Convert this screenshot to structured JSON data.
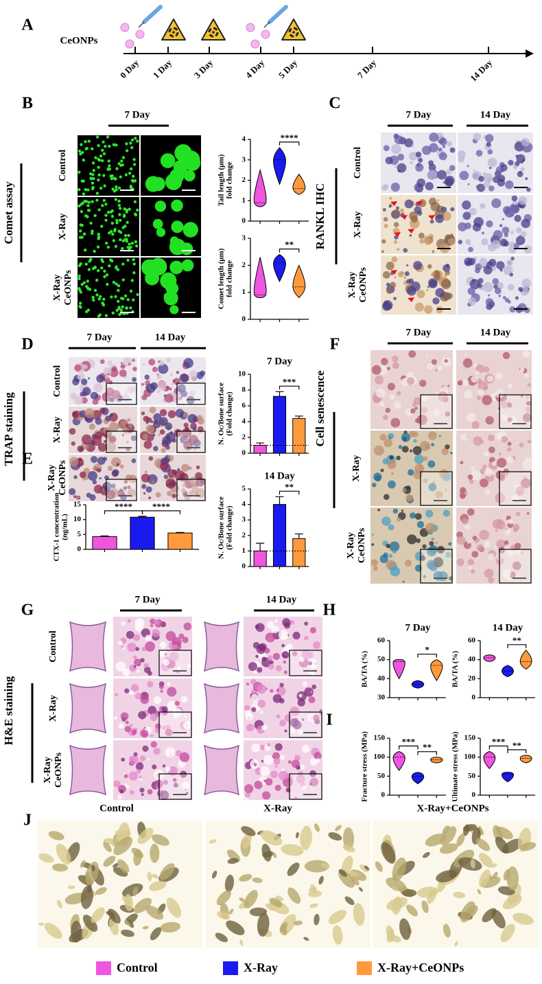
{
  "panel_labels": [
    "A",
    "B",
    "C",
    "D",
    "E",
    "F",
    "G",
    "H",
    "I",
    "J"
  ],
  "timeline": {
    "label": "CeONPs",
    "days": [
      "0 Day",
      "1 Day",
      "3 Day",
      "4 Day",
      "5 Day",
      "7 Day",
      "14 Day"
    ]
  },
  "sections": {
    "comet": "Comet assay",
    "rankl": "RANKL IHC",
    "trap": "TRAP staining",
    "senescence": "Cell senescence",
    "he": "H&E staining"
  },
  "day_headers": {
    "d7": "7 Day",
    "d14": "14 Day"
  },
  "row_labels": [
    [
      "Control"
    ],
    [
      "X-Ray"
    ],
    [
      "X-Ray",
      "CeONPs"
    ]
  ],
  "microct_labels": [
    "Control",
    "X-Ray",
    "X-Ray+CeONPs"
  ],
  "legend": [
    {
      "name": "Control",
      "color": "#f055e0"
    },
    {
      "name": "X-Ray",
      "color": "#1a1aee"
    },
    {
      "name": "X-Ray+CeONPs",
      "color": "#ff9a3c"
    }
  ],
  "chart_data": [
    {
      "type": "violin",
      "ylabel": [
        "Tail length (μm)",
        "fold change"
      ],
      "values": [
        0.9,
        3.0,
        1.6
      ],
      "mins": [
        0.7,
        1.8,
        1.3
      ],
      "maxs": [
        2.5,
        3.6,
        2.3
      ],
      "ylim": [
        0,
        4
      ],
      "yticks": [
        0,
        1,
        2,
        3,
        4
      ],
      "significance": [
        {
          "label": "****",
          "from": 1,
          "to": 2
        }
      ]
    },
    {
      "type": "violin",
      "ylabel": [
        "Comet length (μm)",
        "fold change"
      ],
      "values": [
        0.9,
        2.1,
        1.2
      ],
      "mins": [
        0.8,
        1.4,
        0.8
      ],
      "maxs": [
        2.3,
        2.4,
        2.0
      ],
      "ylim": [
        0,
        3
      ],
      "yticks": [
        0,
        1,
        2,
        3
      ],
      "significance": [
        {
          "label": "**",
          "from": 1,
          "to": 2
        }
      ]
    },
    {
      "type": "bar",
      "title": "7 Day",
      "ylabel": [
        "N. Oc/Bone surface",
        "(Fold change)"
      ],
      "values": [
        1,
        7.2,
        4.4
      ],
      "errors": [
        0.3,
        0.6,
        0.3
      ],
      "reference_line": 1,
      "ylim": [
        0,
        10
      ],
      "yticks": [
        0,
        2,
        4,
        6,
        8,
        10
      ],
      "significance": [
        {
          "label": "***",
          "from": 1,
          "to": 2
        }
      ]
    },
    {
      "type": "bar",
      "title": "14 Day",
      "ylabel": [
        "N. Oc/Bone surface",
        "(Fold change)"
      ],
      "values": [
        1,
        4,
        1.8
      ],
      "errors": [
        0.5,
        0.5,
        0.3
      ],
      "reference_line": 1,
      "ylim": [
        0,
        5
      ],
      "yticks": [
        0,
        1,
        2,
        3,
        4,
        5
      ],
      "significance": [
        {
          "label": "**",
          "from": 1,
          "to": 2
        }
      ]
    },
    {
      "type": "bar",
      "ylabel": [
        "CTX-1 concentration",
        "(ng/mL)"
      ],
      "values": [
        4.3,
        10.8,
        5.5
      ],
      "errors": [
        0.2,
        0.3,
        0.2
      ],
      "ylim": [
        0,
        15
      ],
      "yticks": [
        0,
        5,
        10,
        15
      ],
      "significance": [
        {
          "label": "****",
          "from": 0,
          "to": 1
        },
        {
          "label": "****",
          "from": 1,
          "to": 2
        }
      ]
    },
    {
      "type": "violin",
      "title": "7 Day",
      "ylabel": [
        "BA/TA (%)"
      ],
      "values": [
        49,
        37,
        47
      ],
      "mins": [
        40,
        35,
        39
      ],
      "maxs": [
        50,
        39,
        50
      ],
      "ylim": [
        30,
        60
      ],
      "yticks": [
        30,
        40,
        50,
        60
      ],
      "significance": [
        {
          "label": "*",
          "from": 1,
          "to": 2
        }
      ]
    },
    {
      "type": "violin",
      "title": "14 Day",
      "ylabel": [
        "BA/TA (%)"
      ],
      "values": [
        42,
        28,
        38
      ],
      "mins": [
        38,
        22,
        30
      ],
      "maxs": [
        45,
        34,
        50
      ],
      "ylim": [
        0,
        60
      ],
      "yticks": [
        0,
        20,
        40,
        60
      ],
      "significance": [
        {
          "label": "**",
          "from": 1,
          "to": 2
        }
      ]
    },
    {
      "type": "violin",
      "ylabel": [
        "Fracture stress (MPa)"
      ],
      "values": [
        100,
        50,
        93
      ],
      "mins": [
        65,
        30,
        85
      ],
      "maxs": [
        115,
        60,
        100
      ],
      "ylim": [
        0,
        150
      ],
      "yticks": [
        0,
        50,
        100,
        150
      ],
      "significance": [
        {
          "label": "***",
          "from": 0,
          "to": 1
        },
        {
          "label": "**",
          "from": 1,
          "to": 2
        }
      ]
    },
    {
      "type": "violin",
      "ylabel": [
        "Ultimate stress (MPa)"
      ],
      "values": [
        100,
        55,
        97
      ],
      "mins": [
        70,
        35,
        85
      ],
      "maxs": [
        115,
        60,
        105
      ],
      "ylim": [
        0,
        150
      ],
      "yticks": [
        0,
        50,
        100,
        150
      ],
      "significance": [
        {
          "label": "***",
          "from": 0,
          "to": 1
        },
        {
          "label": "**",
          "from": 1,
          "to": 2
        }
      ]
    }
  ]
}
